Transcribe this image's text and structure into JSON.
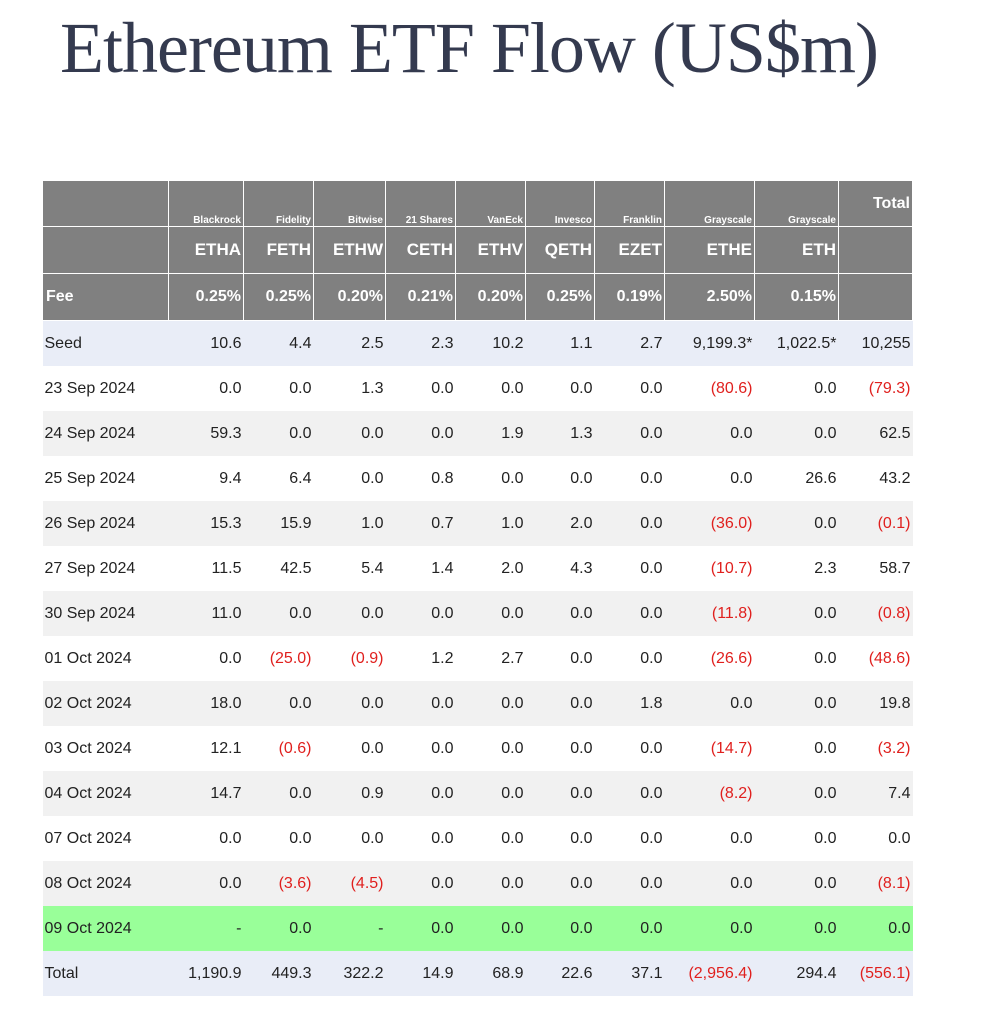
{
  "title": "Ethereum ETF Flow (US$m)",
  "colors": {
    "header_bg": "#808080",
    "seed_total_bg": "#e9edf7",
    "stripe_bg": "#f1f1f1",
    "highlight_bg": "#99ff99",
    "negative_text": "#e0201e",
    "title_text": "#343a4f"
  },
  "header": {
    "issuers": [
      "Blackrock",
      "Fidelity",
      "Bitwise",
      "21 Shares",
      "VanEck",
      "Invesco",
      "Franklin",
      "Grayscale",
      "Grayscale"
    ],
    "total_label": "Total",
    "tickers": [
      "ETHA",
      "FETH",
      "ETHW",
      "CETH",
      "ETHV",
      "QETH",
      "EZET",
      "ETHE",
      "ETH"
    ],
    "fee_label": "Fee",
    "fees": [
      "0.25%",
      "0.25%",
      "0.20%",
      "0.21%",
      "0.20%",
      "0.25%",
      "0.19%",
      "2.50%",
      "0.15%"
    ]
  },
  "rows": [
    {
      "label": "Seed",
      "values": [
        "10.6",
        "4.4",
        "2.5",
        "2.3",
        "10.2",
        "1.1",
        "2.7",
        "9,199.3*",
        "1,022.5*",
        "10,255"
      ]
    },
    {
      "label": "23 Sep 2024",
      "values": [
        "0.0",
        "0.0",
        "1.3",
        "0.0",
        "0.0",
        "0.0",
        "0.0",
        "(80.6)",
        "0.0",
        "(79.3)"
      ]
    },
    {
      "label": "24 Sep 2024",
      "values": [
        "59.3",
        "0.0",
        "0.0",
        "0.0",
        "1.9",
        "1.3",
        "0.0",
        "0.0",
        "0.0",
        "62.5"
      ]
    },
    {
      "label": "25 Sep 2024",
      "values": [
        "9.4",
        "6.4",
        "0.0",
        "0.8",
        "0.0",
        "0.0",
        "0.0",
        "0.0",
        "26.6",
        "43.2"
      ]
    },
    {
      "label": "26 Sep 2024",
      "values": [
        "15.3",
        "15.9",
        "1.0",
        "0.7",
        "1.0",
        "2.0",
        "0.0",
        "(36.0)",
        "0.0",
        "(0.1)"
      ]
    },
    {
      "label": "27 Sep 2024",
      "values": [
        "11.5",
        "42.5",
        "5.4",
        "1.4",
        "2.0",
        "4.3",
        "0.0",
        "(10.7)",
        "2.3",
        "58.7"
      ]
    },
    {
      "label": "30 Sep 2024",
      "values": [
        "11.0",
        "0.0",
        "0.0",
        "0.0",
        "0.0",
        "0.0",
        "0.0",
        "(11.8)",
        "0.0",
        "(0.8)"
      ]
    },
    {
      "label": "01 Oct 2024",
      "values": [
        "0.0",
        "(25.0)",
        "(0.9)",
        "1.2",
        "2.7",
        "0.0",
        "0.0",
        "(26.6)",
        "0.0",
        "(48.6)"
      ]
    },
    {
      "label": "02 Oct 2024",
      "values": [
        "18.0",
        "0.0",
        "0.0",
        "0.0",
        "0.0",
        "0.0",
        "1.8",
        "0.0",
        "0.0",
        "19.8"
      ]
    },
    {
      "label": "03 Oct 2024",
      "values": [
        "12.1",
        "(0.6)",
        "0.0",
        "0.0",
        "0.0",
        "0.0",
        "0.0",
        "(14.7)",
        "0.0",
        "(3.2)"
      ]
    },
    {
      "label": "04 Oct 2024",
      "values": [
        "14.7",
        "0.0",
        "0.9",
        "0.0",
        "0.0",
        "0.0",
        "0.0",
        "(8.2)",
        "0.0",
        "7.4"
      ]
    },
    {
      "label": "07 Oct 2024",
      "values": [
        "0.0",
        "0.0",
        "0.0",
        "0.0",
        "0.0",
        "0.0",
        "0.0",
        "0.0",
        "0.0",
        "0.0"
      ]
    },
    {
      "label": "08 Oct 2024",
      "values": [
        "0.0",
        "(3.6)",
        "(4.5)",
        "0.0",
        "0.0",
        "0.0",
        "0.0",
        "0.0",
        "0.0",
        "(8.1)"
      ]
    },
    {
      "label": "09 Oct 2024",
      "values": [
        "-",
        "0.0",
        "-",
        "0.0",
        "0.0",
        "0.0",
        "0.0",
        "0.0",
        "0.0",
        "0.0"
      ]
    },
    {
      "label": "Total",
      "values": [
        "1,190.9",
        "449.3",
        "322.2",
        "14.9",
        "68.9",
        "22.6",
        "37.1",
        "(2,956.4)",
        "294.4",
        "(556.1)"
      ]
    }
  ]
}
